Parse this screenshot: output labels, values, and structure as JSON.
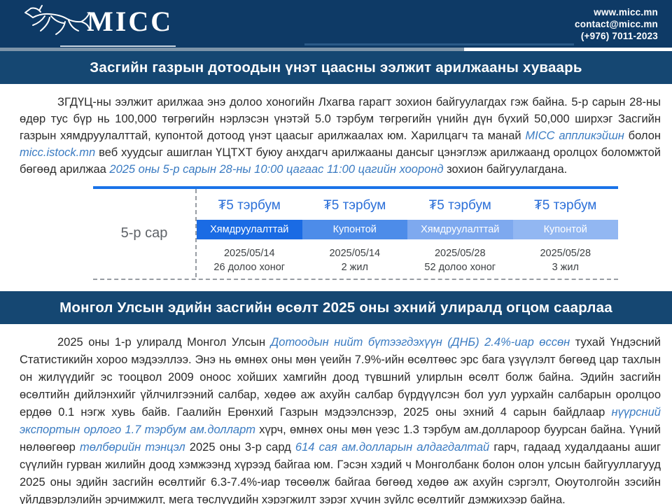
{
  "header": {
    "logo_text": "MICC",
    "contact": {
      "website": "www.micc.mn",
      "email": "contact@micc.mn",
      "phone": "(+976) 7011-2023"
    }
  },
  "colors": {
    "brand_navy": "#0e3a66",
    "title_bar_navy": "#154772",
    "accent_blue": "#3a7bc2",
    "table_top_line": "#1a73e8"
  },
  "section1": {
    "title": "Засгийн газрын дотоодын үнэт цаасны ээлжит арилжааны хуваарь",
    "paragraph": [
      {
        "text": "ЗГДҮЦ-ны ээлжит арилжаа энэ долоо хоногийн Лхагва гарагт зохион байгуулагдах гэж байна. 5-р сарын 28-ны өдөр тус бүр нь 100,000 төгрөгийн нэрлэсэн үнэтэй 5.0 тэрбум төгрөгийн үнийн дүн бүхий 50,000 ширхэг Засгийн газрын хямдруулалттай, купонтой дотоод үнэт цаасыг арилжаалах юм. Харилцагч та манай "
      },
      {
        "text": "MICC аппликэйшн",
        "accent": true
      },
      {
        "text": " болон "
      },
      {
        "text": "micc.istock.mn",
        "accent": true
      },
      {
        "text": " веб хуудсыг ашиглан ҮЦТХТ буюу анхдагч арилжааны дансыг цэнэглэж арилжаанд оролцох боломжтой бөгөөд арилжаа "
      },
      {
        "text": "2025 оны 5-р сарын 28-ны 10:00 цагаас 11:00 цагийн хооронд",
        "accent": true
      },
      {
        "text": " зохион байгуулагдана."
      }
    ],
    "table": {
      "row_label": "5-р сар",
      "columns": [
        {
          "amount": "₮5 тэрбум",
          "type": "Хямдруулалттай",
          "type_color": "#1a6be4",
          "date": "2025/05/14",
          "term": "26 долоо хоног"
        },
        {
          "amount": "₮5 тэрбум",
          "type": "Купонтой",
          "type_color": "#4d8ce9",
          "date": "2025/05/14",
          "term": "2 жил"
        },
        {
          "amount": "₮5 тэрбум",
          "type": "Хямдруулалттай",
          "type_color": "#7ea9ef",
          "date": "2025/05/28",
          "term": "52 долоо хоног"
        },
        {
          "amount": "₮5 тэрбум",
          "type": "Купонтой",
          "type_color": "#92b7f2",
          "date": "2025/05/28",
          "term": "3 жил"
        }
      ]
    }
  },
  "section2": {
    "title": "Монгол Улсын эдийн засгийн өсөлт 2025 оны эхний улиралд огцом саарлаа",
    "paragraph": [
      {
        "text": "2025 оны 1-р улиралд Монгол Улсын "
      },
      {
        "text": "Дотоодын нийт бүтээгдэхүүн (ДНБ) 2.4%-иар өссөн",
        "accent": true
      },
      {
        "text": " тухай Үндэсний Статистикийн хороо мэдээллээ. Энэ нь өмнөх оны мөн үеийн 7.9%-ийн өсөлтөөс эрс бага үзүүлэлт бөгөөд цар тахлын он жилүүдийг эс тооцвол 2009 оноос хойших хамгийн доод түвшний улирлын өсөлт болж байна. Эдийн засгийн өсөлтийн дийлэнхийг үйлчилгээний салбар, хөдөө аж ахуйн салбар бүрдүүлсэн бол уул уурхайн салбарын оролцоо ердөө 0.1 нэгж хувь байв. Гаалийн Ерөнхий Газрын мэдээлснээр, 2025 оны эхний 4 сарын байдлаар "
      },
      {
        "text": "нүүрсний экспортын орлого 1.7 тэрбум ам.долларт",
        "accent": true
      },
      {
        "text": " хүрч, өмнөх оны мөн үеэс 1.3 тэрбум ам.доллароор буурсан байна. Үүний нөлөөгөөр "
      },
      {
        "text": "төлбөрийн тэнцэл",
        "accent": true
      },
      {
        "text": " 2025 оны 3-р сард "
      },
      {
        "text": "614 сая ам.долларын алдагдалтай",
        "accent": true
      },
      {
        "text": " гарч, гадаад худалдааны ашиг сүүлийн гурван жилийн доод хэмжээнд хүрээд байгаа юм. Гэсэн хэдий ч Монголбанк болон олон улсын байгууллагууд 2025 оны эдийн засгийн өсөлтийг 6.3-7.4%-иар төсөөлж байгаа бөгөөд хөдөө аж ахуйн сэргэлт, Оюутолгойн зэсийн үйлдвэрлэлийн эрчимжилт, мега төслүүдийн хэрэгжилт зэрэг хүчин зүйлс өсөлтийг дэмжихээр байна."
      }
    ]
  }
}
